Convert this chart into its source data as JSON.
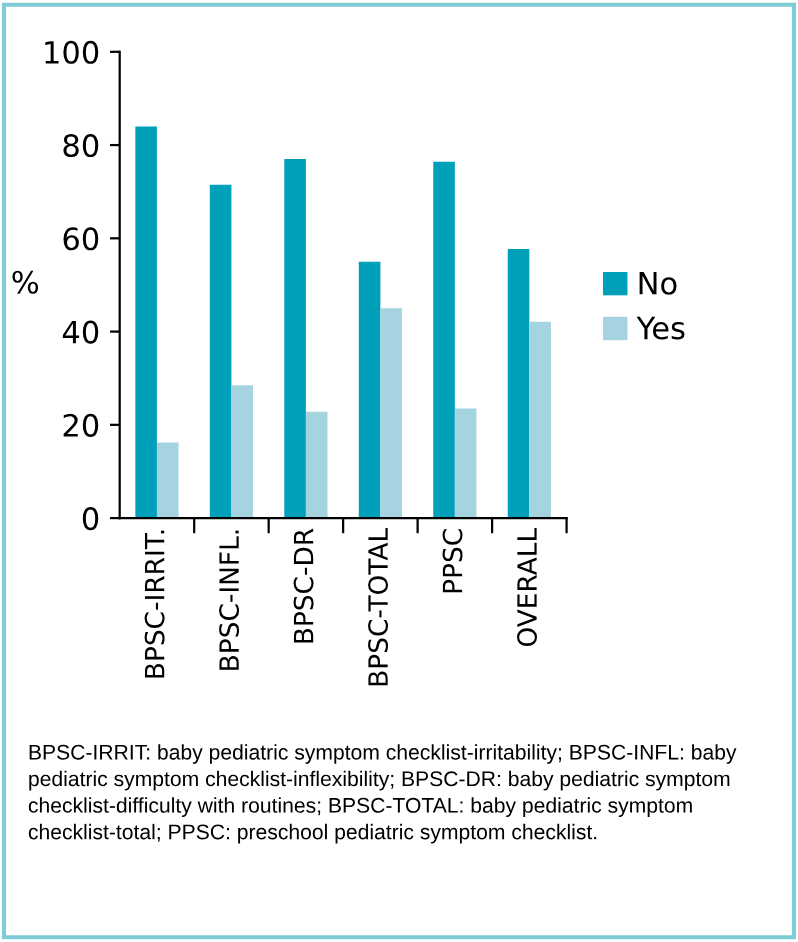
{
  "chart_data": {
    "type": "bar",
    "ylabel": "%",
    "categories": [
      "BPSC-IRRIT.",
      "BPSC-INFL.",
      "BPSC-DR",
      "BPSC-TOTAL",
      "PPSC",
      "OVERALL"
    ],
    "series": [
      {
        "name": "No",
        "color": "#00a0bb",
        "values": [
          84,
          71.5,
          77,
          55,
          76.4,
          57.7
        ]
      },
      {
        "name": "Yes",
        "color": "#a6d3e0",
        "values": [
          16.2,
          28.5,
          22.8,
          45,
          23.5,
          42.1
        ]
      }
    ],
    "ylim": [
      0,
      100
    ],
    "yticks": [
      0,
      20,
      40,
      60,
      80,
      100
    ],
    "grid": false,
    "legend": "right",
    "annotations": [
      "BPSC-IRRIT: baby pediatric symptom checklist-irritability; BPSC-INFL: baby pediatric symptom checklist-inflexibility; BPSC-DR: baby pediatric symptom checklist-difficulty with routines; BPSC-TOTAL: baby pediatric symptom checklist-total; PPSC: preschool pediatric symptom checklist."
    ]
  }
}
